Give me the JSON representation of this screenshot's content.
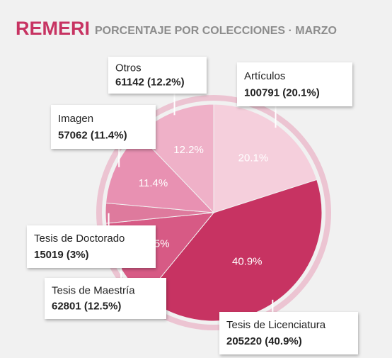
{
  "chart_data": {
    "type": "pie",
    "title": "REMERI",
    "subtitle": "PORCENTAJE POR COLECCIONES · MARZO",
    "categories": [
      "Artículos",
      "Tesis de Licenciatura",
      "Tesis de Maestría",
      "Tesis de Doctorado",
      "Imagen",
      "Otros"
    ],
    "values": [
      20.1,
      40.9,
      12.5,
      3,
      11.4,
      12.2
    ],
    "value_labels": [
      "20.1%",
      "40.9%",
      "12.5%",
      null,
      "11.4%",
      "12.2%"
    ],
    "detail_labels": [
      "100791 (20.1%)",
      "205220 (40.9%)",
      "62801 (12.5%)",
      "15019 (3%)",
      "57062 (11.4%)",
      "61142 (12.2%)"
    ],
    "colors": [
      "#f5cfdc",
      "#c73362",
      "#d75a85",
      "#de7a9d",
      "#e891b2",
      "#efb1c8"
    ]
  }
}
